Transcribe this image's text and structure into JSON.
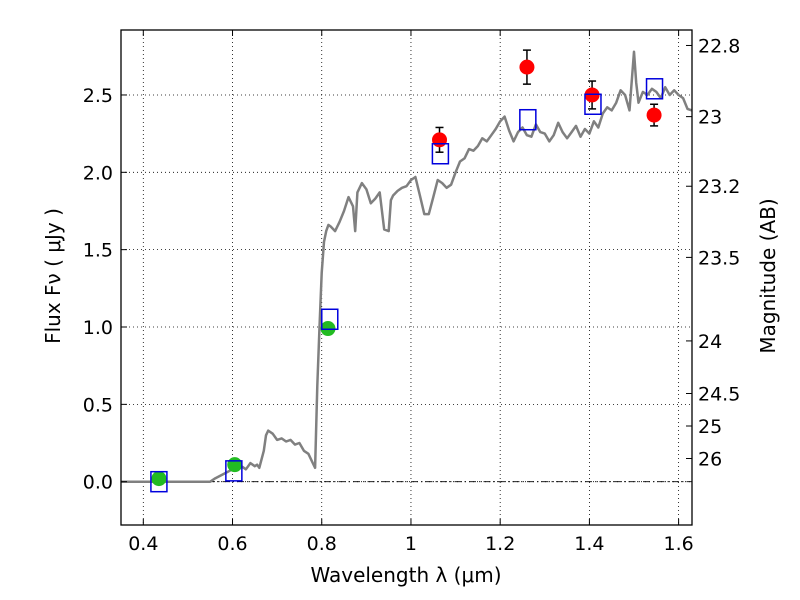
{
  "chart_data": {
    "type": "scatter",
    "xlabel": "Wavelength  λ (μm)",
    "ylabel": "Flux  Fν  ( μJy )",
    "ylabel_right": "Magnitude (AB)",
    "xlim": [
      0.35,
      1.63
    ],
    "ylim": [
      -0.28,
      2.92
    ],
    "grid": true,
    "x_ticks": [
      {
        "value": 0.4,
        "label": "0.4"
      },
      {
        "value": 0.6,
        "label": "0.6"
      },
      {
        "value": 0.8,
        "label": "0.8"
      },
      {
        "value": 1.0,
        "label": "1"
      },
      {
        "value": 1.2,
        "label": "1.2"
      },
      {
        "value": 1.4,
        "label": "1.4"
      },
      {
        "value": 1.6,
        "label": "1.6"
      }
    ],
    "y_ticks": [
      {
        "value": 0.0,
        "label": "0.0"
      },
      {
        "value": 0.5,
        "label": "0.5"
      },
      {
        "value": 1.0,
        "label": "1.0"
      },
      {
        "value": 1.5,
        "label": "1.5"
      },
      {
        "value": 2.0,
        "label": "2.0"
      },
      {
        "value": 2.5,
        "label": "2.5"
      }
    ],
    "right_ticks": [
      {
        "flux": 2.82,
        "label": "22.8"
      },
      {
        "flux": 2.36,
        "label": "23"
      },
      {
        "flux": 1.91,
        "label": "23.2"
      },
      {
        "flux": 1.45,
        "label": "23.5"
      },
      {
        "flux": 0.91,
        "label": "24"
      },
      {
        "flux": 0.57,
        "label": "24.5"
      },
      {
        "flux": 0.36,
        "label": "25"
      },
      {
        "flux": 0.15,
        "label": "26"
      }
    ],
    "series": [
      {
        "name": "model spectrum",
        "kind": "line",
        "color": "#808080",
        "x": [
          0.35,
          0.55,
          0.56,
          0.58,
          0.6,
          0.62,
          0.63,
          0.64,
          0.65,
          0.655,
          0.66,
          0.67,
          0.675,
          0.68,
          0.69,
          0.7,
          0.71,
          0.72,
          0.73,
          0.74,
          0.75,
          0.76,
          0.77,
          0.78,
          0.785,
          0.79,
          0.795,
          0.8,
          0.805,
          0.81,
          0.815,
          0.82,
          0.83,
          0.84,
          0.85,
          0.86,
          0.87,
          0.875,
          0.88,
          0.89,
          0.9,
          0.91,
          0.92,
          0.93,
          0.94,
          0.95,
          0.955,
          0.96,
          0.97,
          0.98,
          0.99,
          1.0,
          1.01,
          1.02,
          1.03,
          1.04,
          1.05,
          1.06,
          1.07,
          1.08,
          1.09,
          1.1,
          1.11,
          1.12,
          1.13,
          1.14,
          1.15,
          1.16,
          1.17,
          1.18,
          1.19,
          1.2,
          1.21,
          1.22,
          1.23,
          1.24,
          1.25,
          1.26,
          1.27,
          1.28,
          1.29,
          1.3,
          1.31,
          1.32,
          1.33,
          1.34,
          1.35,
          1.36,
          1.37,
          1.38,
          1.39,
          1.4,
          1.41,
          1.42,
          1.43,
          1.44,
          1.45,
          1.46,
          1.47,
          1.48,
          1.49,
          1.5,
          1.505,
          1.51,
          1.52,
          1.53,
          1.54,
          1.55,
          1.56,
          1.57,
          1.58,
          1.59,
          1.6,
          1.61,
          1.62,
          1.63
        ],
        "y": [
          0.0,
          0.0,
          0.02,
          0.05,
          0.08,
          0.1,
          0.08,
          0.12,
          0.1,
          0.11,
          0.09,
          0.2,
          0.3,
          0.33,
          0.31,
          0.27,
          0.28,
          0.26,
          0.27,
          0.24,
          0.25,
          0.2,
          0.18,
          0.12,
          0.09,
          0.62,
          1.0,
          1.35,
          1.55,
          1.62,
          1.66,
          1.65,
          1.62,
          1.68,
          1.75,
          1.84,
          1.78,
          1.62,
          1.87,
          1.93,
          1.89,
          1.8,
          1.83,
          1.87,
          1.63,
          1.62,
          1.82,
          1.85,
          1.88,
          1.9,
          1.91,
          1.95,
          1.97,
          1.85,
          1.73,
          1.73,
          1.84,
          1.95,
          1.93,
          1.9,
          1.92,
          2.0,
          2.07,
          2.09,
          2.15,
          2.14,
          2.17,
          2.22,
          2.2,
          2.24,
          2.28,
          2.33,
          2.36,
          2.27,
          2.2,
          2.26,
          2.29,
          2.24,
          2.23,
          2.31,
          2.26,
          2.25,
          2.2,
          2.24,
          2.32,
          2.26,
          2.22,
          2.26,
          2.3,
          2.23,
          2.28,
          2.25,
          2.33,
          2.29,
          2.38,
          2.42,
          2.4,
          2.45,
          2.53,
          2.5,
          2.4,
          2.78,
          2.58,
          2.45,
          2.52,
          2.5,
          2.54,
          2.52,
          2.48,
          2.55,
          2.5,
          2.53,
          2.5,
          2.48,
          2.41,
          2.4
        ]
      },
      {
        "name": "photometry (green)",
        "kind": "points",
        "color": "#22bb22",
        "x": [
          0.435,
          0.605,
          0.814
        ],
        "y": [
          0.02,
          0.11,
          0.99
        ],
        "yerr": [
          0.02,
          0.02,
          0.03
        ]
      },
      {
        "name": "photometry (red)",
        "kind": "points",
        "color": "#ff0000",
        "x": [
          1.064,
          1.26,
          1.406,
          1.545
        ],
        "y": [
          2.21,
          2.68,
          2.5,
          2.37
        ],
        "yerr": [
          0.08,
          0.11,
          0.09,
          0.07
        ]
      },
      {
        "name": "model fluxes",
        "kind": "squares",
        "color": "#0000dd",
        "x": [
          0.435,
          0.603,
          0.818,
          1.066,
          1.262,
          1.408,
          1.546
        ],
        "y": [
          0.0,
          0.07,
          1.05,
          2.12,
          2.34,
          2.44,
          2.54
        ]
      }
    ]
  }
}
